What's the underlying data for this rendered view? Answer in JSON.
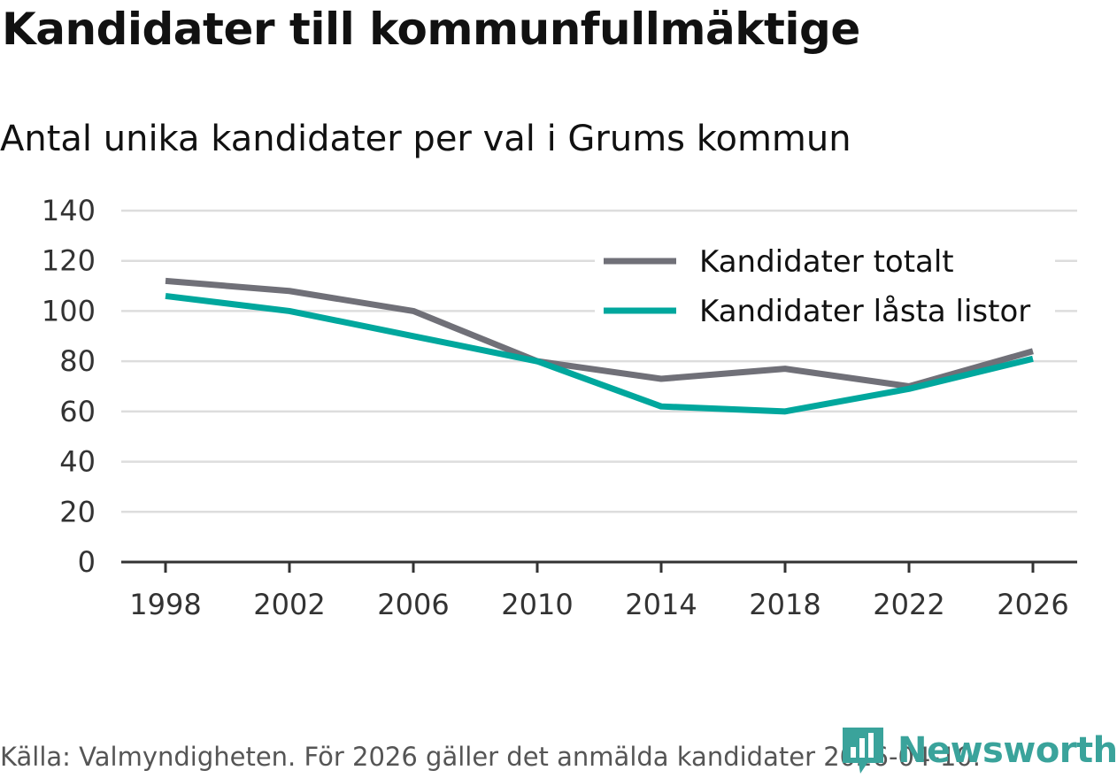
{
  "title": "Kandidater till kommunfullmäktige",
  "subtitle": "Antal unika kandidater per val i Grums kommun",
  "source": "Källa: Valmyndigheten. För 2026 gäller det anmälda kandidater 2026-04-10.",
  "brand": "Newsworthy",
  "colors": {
    "total": "#707078",
    "locked": "#00a79d",
    "grid": "#dddddd",
    "axis": "#333333",
    "brand": "#3aa39b"
  },
  "chart_data": {
    "type": "line",
    "title": "Kandidater till kommunfullmäktige",
    "subtitle": "Antal unika kandidater per val i Grums kommun",
    "xlabel": "",
    "ylabel": "",
    "x": [
      1998,
      2002,
      2006,
      2010,
      2014,
      2018,
      2022,
      2026
    ],
    "x_tick_labels": [
      "1998",
      "2002",
      "2006",
      "2010",
      "2014",
      "2018",
      "2022",
      "2026"
    ],
    "ylim": [
      0,
      140
    ],
    "y_ticks": [
      0,
      20,
      40,
      60,
      80,
      100,
      120,
      140
    ],
    "y_tick_labels": [
      "0",
      "20",
      "40",
      "60",
      "80",
      "100",
      "120",
      "140"
    ],
    "grid": true,
    "legend_position": "top-right",
    "series": [
      {
        "name": "Kandidater totalt",
        "color": "#707078",
        "values": [
          112,
          108,
          100,
          80,
          73,
          77,
          70,
          84
        ]
      },
      {
        "name": "Kandidater låsta listor",
        "color": "#00a79d",
        "values": [
          106,
          100,
          90,
          80,
          62,
          60,
          69,
          81
        ]
      }
    ]
  }
}
